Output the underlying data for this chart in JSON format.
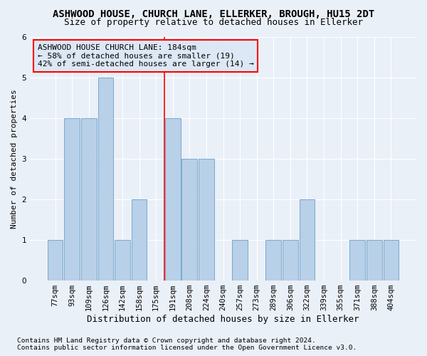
{
  "title": "ASHWOOD HOUSE, CHURCH LANE, ELLERKER, BROUGH, HU15 2DT",
  "subtitle": "Size of property relative to detached houses in Ellerker",
  "xlabel": "Distribution of detached houses by size in Ellerker",
  "ylabel": "Number of detached properties",
  "categories": [
    "77sqm",
    "93sqm",
    "109sqm",
    "126sqm",
    "142sqm",
    "158sqm",
    "175sqm",
    "191sqm",
    "208sqm",
    "224sqm",
    "240sqm",
    "257sqm",
    "273sqm",
    "289sqm",
    "306sqm",
    "322sqm",
    "339sqm",
    "355sqm",
    "371sqm",
    "388sqm",
    "404sqm"
  ],
  "values": [
    1,
    4,
    4,
    5,
    1,
    2,
    0,
    4,
    3,
    3,
    0,
    1,
    0,
    1,
    1,
    2,
    0,
    0,
    1,
    1,
    1
  ],
  "bar_color": "#b8d0e8",
  "bar_edgecolor": "#6a9fc8",
  "bar_linewidth": 0.6,
  "ylim": [
    0,
    6
  ],
  "yticks": [
    0,
    1,
    2,
    3,
    4,
    5,
    6
  ],
  "vline_x_index": 7,
  "vline_color": "red",
  "vline_linewidth": 1.2,
  "annotation_text": "ASHWOOD HOUSE CHURCH LANE: 184sqm\n← 58% of detached houses are smaller (19)\n42% of semi-detached houses are larger (14) →",
  "annotation_box_facecolor": "#dce8f5",
  "annotation_box_edgecolor": "red",
  "footnote1": "Contains HM Land Registry data © Crown copyright and database right 2024.",
  "footnote2": "Contains public sector information licensed under the Open Government Licence v3.0.",
  "background_color": "#eaf0f8",
  "grid_color": "#ffffff",
  "title_fontsize": 10,
  "subtitle_fontsize": 9,
  "xlabel_fontsize": 9,
  "ylabel_fontsize": 8,
  "tick_fontsize": 7.5,
  "annotation_fontsize": 8,
  "footnote_fontsize": 6.8
}
